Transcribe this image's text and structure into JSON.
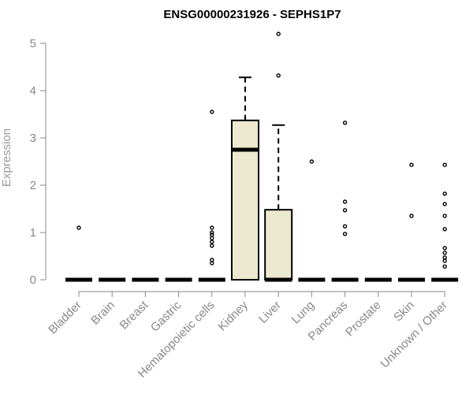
{
  "chart_data": {
    "type": "box",
    "title": "ENSG00000231926 - SEPHS1P7",
    "xlabel": "",
    "ylabel": "Expression",
    "ylim": [
      0,
      5.2
    ],
    "yticks": [
      "0",
      "1",
      "2",
      "3",
      "4",
      "5"
    ],
    "colors": {
      "box_fill": "#ede8d0",
      "stroke": "#000000",
      "axis": "#888888"
    },
    "categories": [
      "Bladder",
      "Brain",
      "Breast",
      "Gastric",
      "Hematopoietic cells",
      "Kidney",
      "Liver",
      "Lung",
      "Pancreas",
      "Prostate",
      "Skin",
      "Unknown / Other"
    ],
    "boxes": [
      {
        "q1": 0,
        "median": 0,
        "q3": 0,
        "whisker_low": 0,
        "whisker_high": 0,
        "outliers": [
          1.1
        ]
      },
      {
        "q1": 0,
        "median": 0,
        "q3": 0,
        "whisker_low": 0,
        "whisker_high": 0,
        "outliers": []
      },
      {
        "q1": 0,
        "median": 0,
        "q3": 0,
        "whisker_low": 0,
        "whisker_high": 0,
        "outliers": []
      },
      {
        "q1": 0,
        "median": 0,
        "q3": 0,
        "whisker_low": 0,
        "whisker_high": 0,
        "outliers": []
      },
      {
        "q1": 0,
        "median": 0,
        "q3": 0,
        "whisker_low": 0,
        "whisker_high": 0,
        "outliers": [
          3.55,
          1.1,
          1.0,
          0.95,
          0.88,
          0.8,
          0.72,
          0.42,
          0.35
        ]
      },
      {
        "q1": 0,
        "median": 2.75,
        "q3": 3.37,
        "whisker_low": 0,
        "whisker_high": 4.28,
        "outliers": []
      },
      {
        "q1": 0,
        "median": 0,
        "q3": 1.48,
        "whisker_low": 0,
        "whisker_high": 3.27,
        "outliers": [
          5.2,
          4.32
        ]
      },
      {
        "q1": 0,
        "median": 0,
        "q3": 0,
        "whisker_low": 0,
        "whisker_high": 0,
        "outliers": [
          2.5
        ]
      },
      {
        "q1": 0,
        "median": 0,
        "q3": 0,
        "whisker_low": 0,
        "whisker_high": 0,
        "outliers": [
          3.32,
          1.65,
          1.47,
          1.13,
          0.97
        ]
      },
      {
        "q1": 0,
        "median": 0,
        "q3": 0,
        "whisker_low": 0,
        "whisker_high": 0,
        "outliers": []
      },
      {
        "q1": 0,
        "median": 0,
        "q3": 0,
        "whisker_low": 0,
        "whisker_high": 0,
        "outliers": [
          2.43,
          1.35
        ]
      },
      {
        "q1": 0,
        "median": 0,
        "q3": 0,
        "whisker_low": 0,
        "whisker_high": 0,
        "outliers": [
          2.43,
          1.82,
          1.6,
          1.35,
          1.07,
          0.67,
          0.57,
          0.47,
          0.4,
          0.28
        ]
      }
    ]
  }
}
